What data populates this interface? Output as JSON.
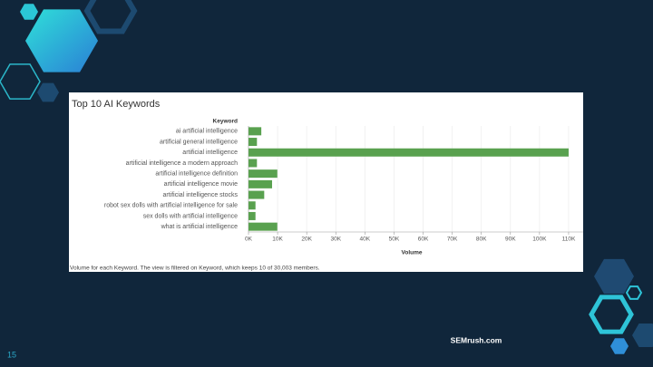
{
  "chart_data": {
    "type": "bar",
    "orientation": "horizontal",
    "title": "Top 10 AI Keywords",
    "y_axis_header": "Keyword",
    "x_label": "Volume",
    "caption": "Volume for each Keyword. The view is filtered on Keyword, which keeps 10 of 30,003 members.",
    "categories": [
      "ai artificial intelligence",
      "artificial general intelligence",
      "artificial intelligence",
      "artificial intelligence a modern approach",
      "artificial intelligence definition",
      "artificial intelligence movie",
      "artificial intelligence stocks",
      "robot sex dolls with artificial intelligence for sale",
      "sex dolls with artificial intelligence",
      "what is artificial intelligence"
    ],
    "values": [
      4400,
      2900,
      110000,
      2900,
      9900,
      8100,
      5400,
      2400,
      2400,
      9900
    ],
    "color": "#59a14f",
    "xlim": [
      0,
      115000
    ],
    "xticks": [
      {
        "value": 0,
        "label": "0K"
      },
      {
        "value": 10000,
        "label": "10K"
      },
      {
        "value": 20000,
        "label": "20K"
      },
      {
        "value": 30000,
        "label": "30K"
      },
      {
        "value": 40000,
        "label": "40K"
      },
      {
        "value": 50000,
        "label": "50K"
      },
      {
        "value": 60000,
        "label": "60K"
      },
      {
        "value": 70000,
        "label": "70K"
      },
      {
        "value": 80000,
        "label": "80K"
      },
      {
        "value": 90000,
        "label": "90K"
      },
      {
        "value": 100000,
        "label": "100K"
      },
      {
        "value": 110000,
        "label": "110K"
      }
    ],
    "grid": true
  },
  "footer": {
    "source": "SEMrush.com",
    "page_number": "15"
  }
}
